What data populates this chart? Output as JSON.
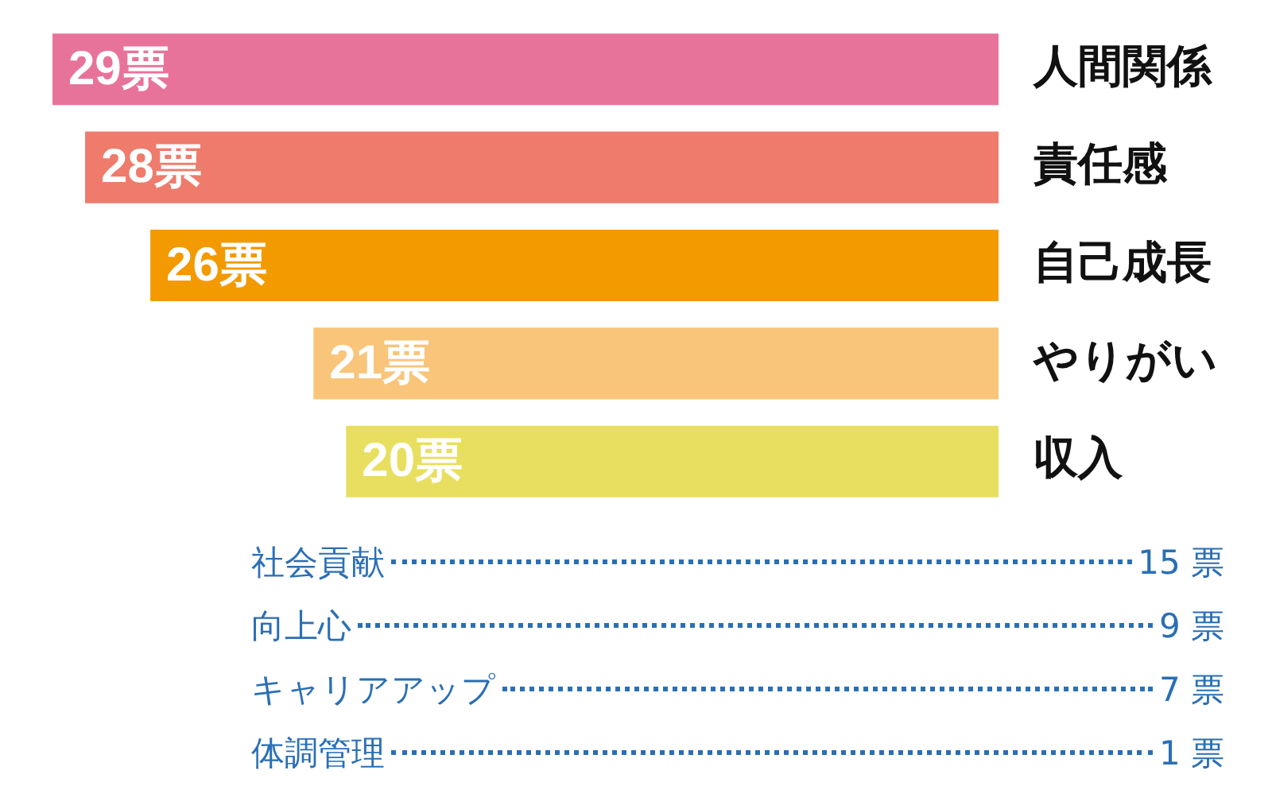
{
  "chart_data": [
    {
      "type": "bar",
      "orientation": "horizontal",
      "categories": [
        "人間関係",
        "責任感",
        "自己成長",
        "やりがい",
        "収入"
      ],
      "values": [
        29,
        28,
        26,
        21,
        20
      ],
      "colors": [
        "#e8739a",
        "#ee7b6b",
        "#f39a00",
        "#f8c57a",
        "#e8df60"
      ],
      "value_labels": [
        "29票",
        "28票",
        "26票",
        "21票",
        "20票"
      ],
      "tick_labels": "y",
      "legend": false
    },
    {
      "type": "other",
      "annotations": [
        "社会貢献",
        "15 票",
        "向上心",
        "9 票",
        "キャリアアップ",
        "7 票",
        "体調管理",
        "1 票"
      ]
    }
  ]
}
